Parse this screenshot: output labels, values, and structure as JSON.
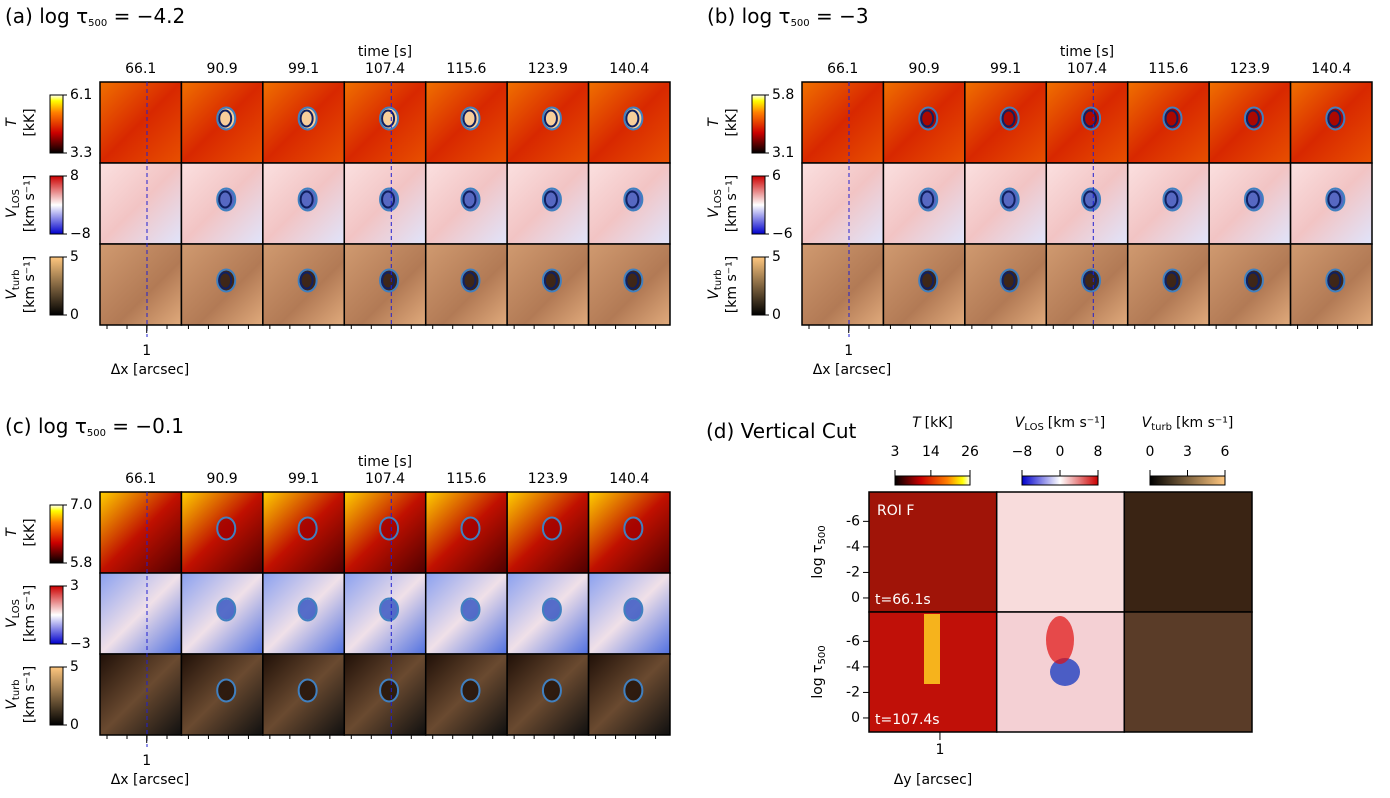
{
  "figure": {
    "panels": [
      {
        "letter": "(a)",
        "title_main": "log τ",
        "title_sub": "500",
        "title_value": " = −4.2",
        "x_title": "time [s]",
        "times": [
          66.1,
          90.9,
          99.1,
          107.4,
          115.6,
          123.9,
          140.4
        ],
        "rows": [
          {
            "label": "T",
            "unit": "[kK]",
            "ticks": [
              6.1,
              3.3
            ]
          },
          {
            "label": "V",
            "label_sub": "LOS",
            "unit": "[km s⁻¹]",
            "ticks": [
              8,
              {
                "value": -8,
                "label": "−8"
              }
            ]
          },
          {
            "label": "V",
            "label_sub": "turb",
            "unit": "[km s⁻¹]",
            "ticks": [
              5,
              0
            ]
          }
        ],
        "xlim": [
          0.3,
          1.52
        ],
        "xticks": [
          1
        ],
        "xlabel": "Δx [arcsec]"
      },
      {
        "letter": "(b)",
        "title_main": "log τ",
        "title_sub": "500",
        "title_value": " = −3",
        "x_title": "time [s]",
        "times": [
          66.1,
          90.9,
          99.1,
          107.4,
          115.6,
          123.9,
          140.4
        ],
        "rows": [
          {
            "label": "T",
            "unit": "[kK]",
            "ticks": [
              5.8,
              3.1
            ]
          },
          {
            "label": "V",
            "label_sub": "LOS",
            "unit": "[km s⁻¹]",
            "ticks": [
              6,
              {
                "value": -6,
                "label": "−6"
              }
            ]
          },
          {
            "label": "V",
            "label_sub": "turb",
            "unit": "[km s⁻¹]",
            "ticks": [
              5,
              0
            ]
          }
        ],
        "xlim": [
          0.3,
          1.52
        ],
        "xticks": [
          1
        ],
        "xlabel": "Δx [arcsec]"
      },
      {
        "letter": "(c)",
        "title_main": "log τ",
        "title_sub": "500",
        "title_value": " = −0.1",
        "x_title": "time [s]",
        "times": [
          66.1,
          90.9,
          99.1,
          107.4,
          115.6,
          123.9,
          140.4
        ],
        "rows": [
          {
            "label": "T",
            "unit": "[kK]",
            "ticks": [
              {
                "value": 7,
                "label": "7.0"
              },
              5.8
            ]
          },
          {
            "label": "V",
            "label_sub": "LOS",
            "unit": "[km s⁻¹]",
            "ticks": [
              3,
              {
                "value": -3,
                "label": "−3"
              }
            ]
          },
          {
            "label": "V",
            "label_sub": "turb",
            "unit": "[km s⁻¹]",
            "ticks": [
              5,
              0
            ]
          }
        ],
        "xlim": [
          0.3,
          1.52
        ],
        "xticks": [
          1
        ],
        "xlabel": "Δx [arcsec]"
      }
    ],
    "cut": {
      "letter": "(d)",
      "title": "Vertical Cut",
      "colorbars": [
        {
          "label": "T",
          "unit": "[kK]",
          "ticks": [
            3,
            14,
            26
          ]
        },
        {
          "label": "V",
          "label_sub": "LOS",
          "unit": "[km s⁻¹]",
          "ticks": [
            {
              "value": -8,
              "label": "−8"
            },
            0,
            8
          ]
        },
        {
          "label": "V",
          "label_sub": "turb",
          "unit": "[km s⁻¹]",
          "ticks": [
            0,
            3,
            6
          ]
        }
      ],
      "ylabel_main": "log τ",
      "ylabel_sub": "500",
      "ylim": [
        1.1,
        -8.3
      ],
      "yticks": [
        -6,
        -4,
        -2,
        0
      ],
      "roi": "ROI F",
      "times": [
        "t=66.1s",
        "t=107.4s"
      ],
      "xlim": [
        0.3,
        1.56
      ],
      "xticks": [
        1
      ],
      "xlabel": "Δy [arcsec]"
    }
  }
}
